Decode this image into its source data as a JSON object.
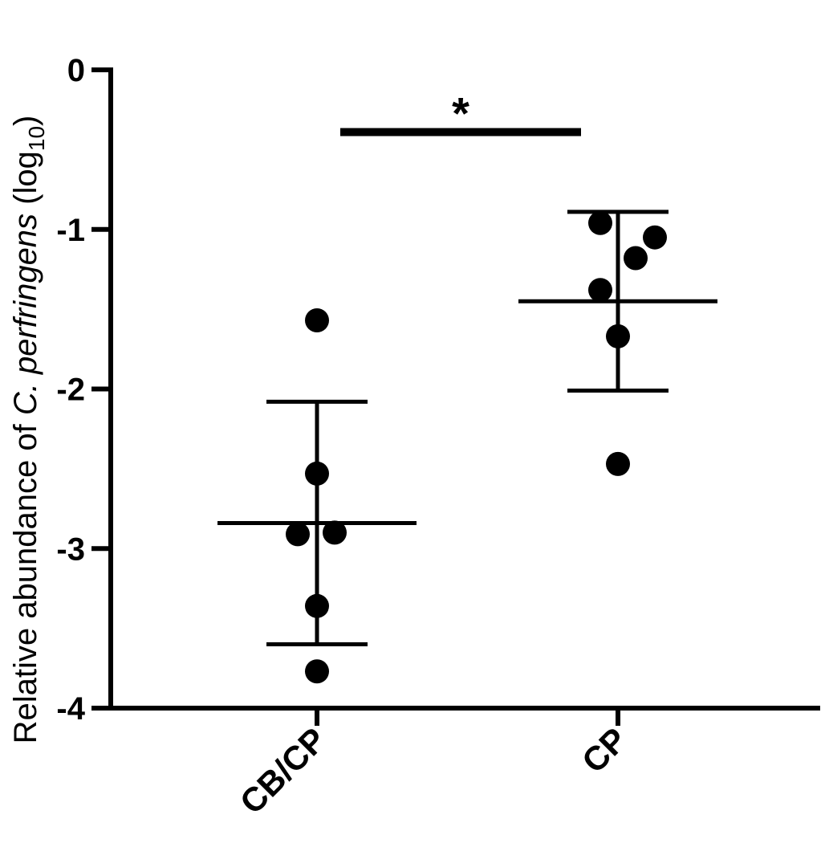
{
  "chart_data": {
    "type": "scatter",
    "ylabel": {
      "prefix": "Relative abundance of ",
      "species": "C. perfringens",
      "unit_open": " (log",
      "unit_sub": "10",
      "unit_close": ")"
    },
    "xlabel": "",
    "ylim": [
      -4,
      0
    ],
    "yticks": [
      0,
      -1,
      -2,
      -3,
      -4
    ],
    "ytick_labels": [
      "0",
      "-1",
      "-2",
      "-3",
      "-4"
    ],
    "categories": [
      "CB/CP",
      "CP"
    ],
    "groups": [
      {
        "category": "CB/CP",
        "mean": -2.84,
        "sd_upper": -2.08,
        "sd_lower": -3.6,
        "points": [
          -1.57,
          -2.53,
          -2.91,
          -2.9,
          -3.36,
          -3.77
        ]
      },
      {
        "category": "CP",
        "mean": -1.45,
        "sd_upper": -0.89,
        "sd_lower": -2.01,
        "points": [
          -0.96,
          -1.05,
          -1.18,
          -1.38,
          -1.67,
          -2.47
        ]
      }
    ],
    "significance": {
      "label": "*",
      "between": [
        "CB/CP",
        "CP"
      ],
      "y": -0.39
    },
    "grid": false,
    "legend": "none",
    "colors": {
      "points": "#000000",
      "lines": "#000000"
    }
  }
}
